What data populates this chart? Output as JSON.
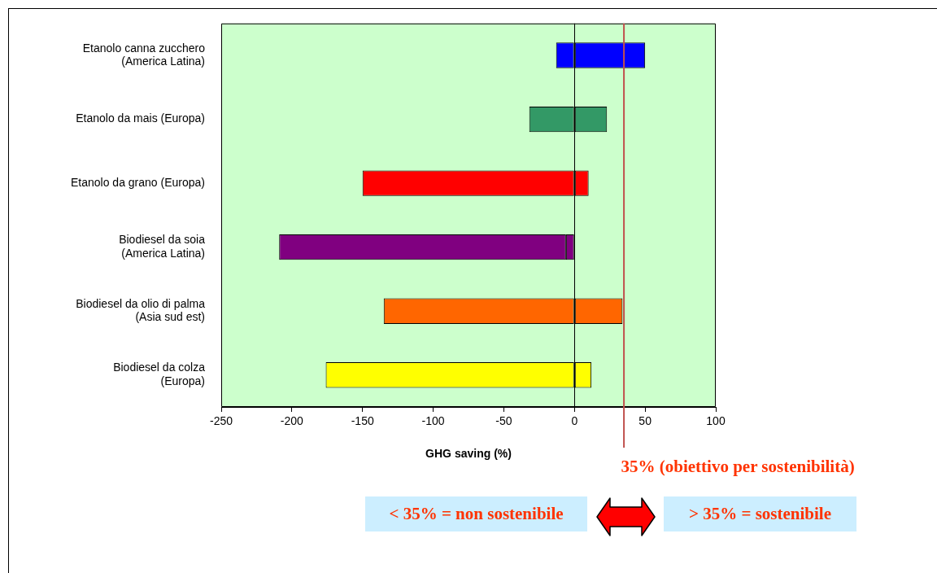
{
  "chart_data": {
    "type": "bar",
    "orientation": "horizontal",
    "stacked": true,
    "categories": [
      "Etanolo canna zucchero\n(America Latina)",
      "Etanolo da mais (Europa)",
      "Etanolo da grano (Europa)",
      "Biodiesel da soia\n(America Latina)",
      "Biodiesel da olio di palma\n(Asia sud est)",
      "Biodiesel da colza\n(Europa)"
    ],
    "series": [
      {
        "colors": [
          "#0000ff",
          "#339966",
          "#ff0000",
          "#800080",
          "#ff6600",
          "#ffff00"
        ],
        "values": [
          50,
          23,
          10,
          -6,
          34,
          12
        ]
      },
      {
        "colors": [
          "#0000ff",
          "#339966",
          "#ff0000",
          "#800080",
          "#ff6600",
          "#ffff00"
        ],
        "values": [
          -13,
          -32,
          -150,
          -203,
          -135,
          -176
        ]
      }
    ],
    "xlabel": "GHG saving (%)",
    "xlim": [
      -250,
      100
    ],
    "xticks": [
      -250,
      -200,
      -150,
      -100,
      -50,
      0,
      50,
      100
    ],
    "legend": false,
    "ref_lines": [
      {
        "axis": "x",
        "value": 35,
        "label": "35% (obiettivo per sostenibilità)",
        "color": "#c0504d"
      }
    ],
    "annotations": [
      "< 35% = non sostenibile",
      "> 35% = sostenibile"
    ]
  }
}
